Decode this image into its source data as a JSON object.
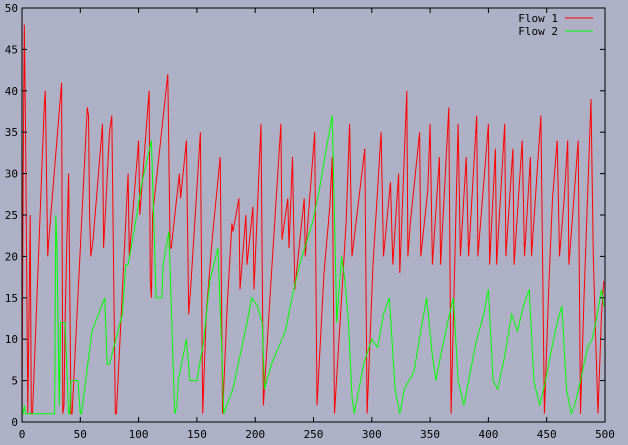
{
  "chart_data": {
    "type": "line",
    "title": "",
    "xlabel": "",
    "ylabel": "",
    "xlim": [
      0,
      500
    ],
    "ylim": [
      0,
      50
    ],
    "x_ticks": [
      0,
      50,
      100,
      150,
      200,
      250,
      300,
      350,
      400,
      450,
      500
    ],
    "y_ticks": [
      0,
      5,
      10,
      15,
      20,
      25,
      30,
      35,
      40,
      45,
      50
    ],
    "grid": false,
    "legend_position": "top-right",
    "background": "#aeb0c6",
    "series": [
      {
        "name": "Flow 1",
        "color": "#ff0000",
        "points": [
          [
            0,
            1
          ],
          [
            1,
            30
          ],
          [
            2,
            48
          ],
          [
            3,
            36
          ],
          [
            5,
            1
          ],
          [
            6,
            13
          ],
          [
            7,
            25
          ],
          [
            8,
            1
          ],
          [
            9,
            1
          ],
          [
            19,
            38
          ],
          [
            20,
            40
          ],
          [
            22,
            20
          ],
          [
            23,
            22
          ],
          [
            34,
            41
          ],
          [
            35,
            1
          ],
          [
            36,
            2
          ],
          [
            37,
            12
          ],
          [
            38,
            19
          ],
          [
            40,
            30
          ],
          [
            42,
            1
          ],
          [
            43,
            1
          ],
          [
            56,
            38
          ],
          [
            57,
            37
          ],
          [
            58,
            25
          ],
          [
            59,
            20
          ],
          [
            61,
            22
          ],
          [
            69,
            36
          ],
          [
            70,
            21
          ],
          [
            75,
            35
          ],
          [
            77,
            37
          ],
          [
            80,
            1
          ],
          [
            81,
            1
          ],
          [
            91,
            30
          ],
          [
            92,
            20
          ],
          [
            100,
            34
          ],
          [
            101,
            25
          ],
          [
            109,
            40
          ],
          [
            110,
            17
          ],
          [
            111,
            15
          ],
          [
            112,
            25
          ],
          [
            125,
            42
          ],
          [
            127,
            21
          ],
          [
            128,
            21
          ],
          [
            135,
            30
          ],
          [
            136,
            27
          ],
          [
            141,
            34
          ],
          [
            143,
            13
          ],
          [
            145,
            17
          ],
          [
            153,
            35
          ],
          [
            155,
            1
          ],
          [
            158,
            13
          ],
          [
            163,
            22
          ],
          [
            170,
            32
          ],
          [
            172,
            1
          ],
          [
            176,
            14
          ],
          [
            180,
            24
          ],
          [
            181,
            23
          ],
          [
            186,
            27
          ],
          [
            187,
            16
          ],
          [
            192,
            25
          ],
          [
            193,
            19
          ],
          [
            198,
            26
          ],
          [
            199,
            16
          ],
          [
            205,
            36
          ],
          [
            207,
            2
          ],
          [
            214,
            18
          ],
          [
            222,
            36
          ],
          [
            223,
            22
          ],
          [
            228,
            27
          ],
          [
            229,
            21
          ],
          [
            232,
            32
          ],
          [
            234,
            16
          ],
          [
            242,
            27
          ],
          [
            243,
            20
          ],
          [
            251,
            35
          ],
          [
            253,
            2
          ],
          [
            259,
            18
          ],
          [
            264,
            26
          ],
          [
            266,
            32
          ],
          [
            268,
            1
          ],
          [
            278,
            24
          ],
          [
            281,
            36
          ],
          [
            283,
            20
          ],
          [
            294,
            33
          ],
          [
            296,
            1
          ],
          [
            301,
            19
          ],
          [
            308,
            35
          ],
          [
            310,
            20
          ],
          [
            316,
            29
          ],
          [
            318,
            19
          ],
          [
            323,
            30
          ],
          [
            324,
            18
          ],
          [
            330,
            40
          ],
          [
            331,
            20
          ],
          [
            333,
            24
          ],
          [
            341,
            35
          ],
          [
            342,
            20
          ],
          [
            348,
            28
          ],
          [
            350,
            36
          ],
          [
            352,
            19
          ],
          [
            358,
            32
          ],
          [
            359,
            19
          ],
          [
            366,
            38
          ],
          [
            368,
            1
          ],
          [
            374,
            36
          ],
          [
            376,
            20
          ],
          [
            381,
            32
          ],
          [
            383,
            20
          ],
          [
            390,
            37
          ],
          [
            391,
            20
          ],
          [
            400,
            36
          ],
          [
            401,
            19
          ],
          [
            406,
            33
          ],
          [
            407,
            19
          ],
          [
            414,
            36
          ],
          [
            415,
            20
          ],
          [
            421,
            33
          ],
          [
            422,
            19
          ],
          [
            429,
            34
          ],
          [
            431,
            20
          ],
          [
            436,
            32
          ],
          [
            437,
            20
          ],
          [
            445,
            37
          ],
          [
            448,
            1
          ],
          [
            452,
            17
          ],
          [
            455,
            27
          ],
          [
            459,
            34
          ],
          [
            461,
            20
          ],
          [
            465,
            27
          ],
          [
            468,
            34
          ],
          [
            469,
            19
          ],
          [
            477,
            34
          ],
          [
            479,
            1
          ],
          [
            482,
            15
          ],
          [
            488,
            39
          ],
          [
            490,
            20
          ],
          [
            492,
            10
          ],
          [
            494,
            1
          ],
          [
            497,
            13
          ],
          [
            499,
            17
          ]
        ]
      },
      {
        "name": "Flow 2",
        "color": "#00ff00",
        "points": [
          [
            0,
            1
          ],
          [
            1,
            1
          ],
          [
            2,
            2
          ],
          [
            3,
            1
          ],
          [
            28,
            1
          ],
          [
            29,
            25
          ],
          [
            30,
            21
          ],
          [
            32,
            2
          ],
          [
            33,
            12
          ],
          [
            37,
            12
          ],
          [
            40,
            1
          ],
          [
            41,
            1
          ],
          [
            42,
            5
          ],
          [
            48,
            5
          ],
          [
            50,
            1
          ],
          [
            51,
            1
          ],
          [
            60,
            11
          ],
          [
            71,
            15
          ],
          [
            73,
            7
          ],
          [
            75,
            7
          ],
          [
            86,
            13
          ],
          [
            89,
            19
          ],
          [
            91,
            19
          ],
          [
            96,
            23
          ],
          [
            103,
            29
          ],
          [
            111,
            34
          ],
          [
            115,
            15
          ],
          [
            120,
            15
          ],
          [
            121,
            19
          ],
          [
            126,
            23
          ],
          [
            131,
            1
          ],
          [
            133,
            2
          ],
          [
            134,
            5
          ],
          [
            141,
            10
          ],
          [
            144,
            5
          ],
          [
            150,
            5
          ],
          [
            156,
            10
          ],
          [
            161,
            17
          ],
          [
            168,
            21
          ],
          [
            171,
            10
          ],
          [
            173,
            1
          ],
          [
            181,
            4
          ],
          [
            190,
            10
          ],
          [
            193,
            12
          ],
          [
            197,
            15
          ],
          [
            202,
            14
          ],
          [
            206,
            12
          ],
          [
            208,
            4
          ],
          [
            214,
            7
          ],
          [
            226,
            11
          ],
          [
            230,
            14
          ],
          [
            238,
            19
          ],
          [
            249,
            24
          ],
          [
            255,
            28
          ],
          [
            261,
            33
          ],
          [
            266,
            37
          ],
          [
            270,
            12
          ],
          [
            274,
            20
          ],
          [
            277,
            17
          ],
          [
            280,
            12
          ],
          [
            283,
            3
          ],
          [
            285,
            1
          ],
          [
            293,
            7
          ],
          [
            300,
            10
          ],
          [
            305,
            9
          ],
          [
            310,
            13
          ],
          [
            315,
            15
          ],
          [
            320,
            4
          ],
          [
            324,
            1
          ],
          [
            328,
            4
          ],
          [
            336,
            6
          ],
          [
            342,
            11
          ],
          [
            347,
            15
          ],
          [
            352,
            8
          ],
          [
            355,
            5
          ],
          [
            359,
            8
          ],
          [
            365,
            12
          ],
          [
            370,
            15
          ],
          [
            374,
            5
          ],
          [
            379,
            2
          ],
          [
            383,
            5
          ],
          [
            390,
            10
          ],
          [
            396,
            13
          ],
          [
            400,
            16
          ],
          [
            404,
            5
          ],
          [
            408,
            4
          ],
          [
            414,
            8
          ],
          [
            420,
            13
          ],
          [
            425,
            11
          ],
          [
            430,
            14
          ],
          [
            435,
            16
          ],
          [
            439,
            5
          ],
          [
            444,
            2
          ],
          [
            449,
            5
          ],
          [
            453,
            8
          ],
          [
            459,
            12
          ],
          [
            463,
            14
          ],
          [
            467,
            4
          ],
          [
            471,
            1
          ],
          [
            474,
            2
          ],
          [
            479,
            5
          ],
          [
            485,
            9
          ],
          [
            489,
            10
          ],
          [
            492,
            12
          ],
          [
            497,
            16
          ],
          [
            499,
            14
          ]
        ]
      }
    ]
  }
}
